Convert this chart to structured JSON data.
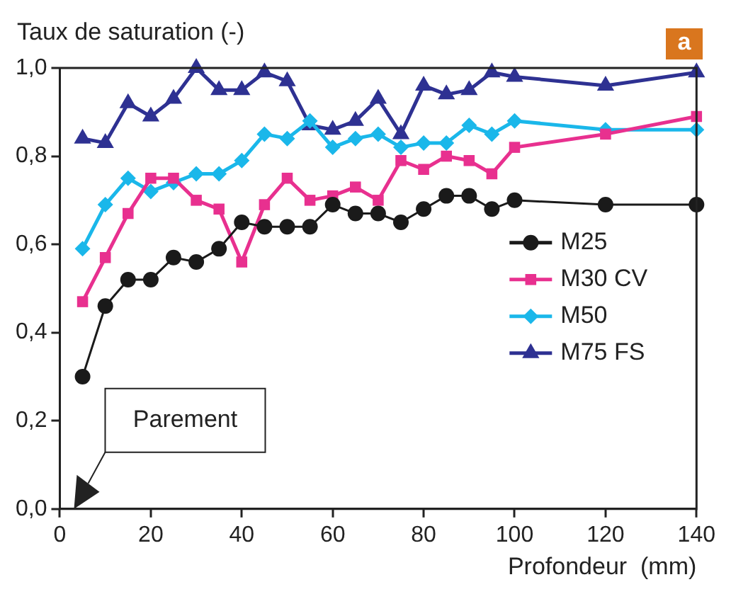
{
  "chart_data": {
    "type": "line",
    "ylabel": "Taux de saturation (-)",
    "xlabel": "Profondeur  (mm)",
    "x": [
      5,
      10,
      15,
      20,
      25,
      30,
      35,
      40,
      45,
      50,
      55,
      60,
      65,
      70,
      75,
      80,
      85,
      90,
      95,
      100,
      120,
      140
    ],
    "series": [
      {
        "name": "M25",
        "color": "#1a1a1a",
        "marker": "circle",
        "values": [
          0.3,
          0.46,
          0.52,
          0.52,
          0.57,
          0.56,
          0.59,
          0.65,
          0.64,
          0.64,
          0.64,
          0.69,
          0.67,
          0.67,
          0.65,
          0.68,
          0.71,
          0.71,
          0.68,
          0.7,
          0.69,
          0.69
        ]
      },
      {
        "name": "M30 CV",
        "color": "#e8308f",
        "marker": "square",
        "values": [
          0.47,
          0.57,
          0.67,
          0.75,
          0.75,
          0.7,
          0.68,
          0.56,
          0.69,
          0.75,
          0.7,
          0.71,
          0.73,
          0.7,
          0.79,
          0.77,
          0.8,
          0.79,
          0.76,
          0.82,
          0.85,
          0.89
        ]
      },
      {
        "name": "M50",
        "color": "#1ab7ea",
        "marker": "diamond",
        "values": [
          0.59,
          0.69,
          0.75,
          0.72,
          0.74,
          0.76,
          0.76,
          0.79,
          0.85,
          0.84,
          0.88,
          0.82,
          0.84,
          0.85,
          0.82,
          0.83,
          0.83,
          0.87,
          0.85,
          0.88,
          0.86,
          0.86
        ]
      },
      {
        "name": "M75 FS",
        "color": "#2e3192",
        "marker": "triangle",
        "values": [
          0.84,
          0.83,
          0.92,
          0.89,
          0.93,
          1.0,
          0.95,
          0.95,
          0.99,
          0.97,
          0.87,
          0.86,
          0.88,
          0.93,
          0.85,
          0.96,
          0.94,
          0.95,
          0.99,
          0.98,
          0.96,
          0.99
        ]
      }
    ],
    "xlim": [
      0,
      140
    ],
    "xticks": [
      0,
      20,
      40,
      60,
      80,
      100,
      120,
      140
    ],
    "ylim": [
      0,
      1
    ],
    "yticks": [
      {
        "value": 0,
        "label": "0,0"
      },
      {
        "value": 0.2,
        "label": "0,2"
      },
      {
        "value": 0.4,
        "label": "0,4"
      },
      {
        "value": 0.6,
        "label": "0,6"
      },
      {
        "value": 0.8,
        "label": "0,8"
      },
      {
        "value": 1,
        "label": "1,0"
      }
    ],
    "grid": false,
    "legend": "bottom right",
    "line_style": "solid",
    "annotations": [
      "Parement",
      "a"
    ]
  }
}
